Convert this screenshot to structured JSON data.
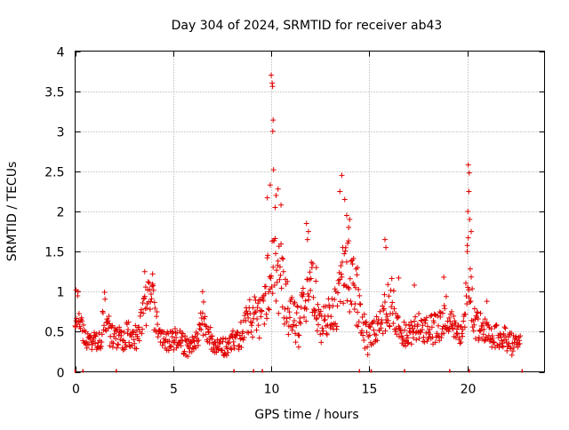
{
  "chart_data": {
    "type": "scatter",
    "title": "Day 304 of 2024, SRMTID for receiver ab43",
    "xlabel": "GPS time / hours",
    "ylabel": "SRMTID / TECUs",
    "xlim": [
      0,
      23.94
    ],
    "ylim": [
      0,
      4
    ],
    "xticks": [
      0,
      5,
      10,
      15,
      20
    ],
    "xtick_labels": [
      "0",
      "5",
      "10",
      "15",
      "20"
    ],
    "yticks": [
      0,
      0.5,
      1,
      1.5,
      2,
      2.5,
      3,
      3.5,
      4
    ],
    "ytick_labels": [
      "0",
      "0.5",
      "1",
      "1.5",
      "2",
      "2.5",
      "3",
      "3.5",
      "4"
    ],
    "grid": true,
    "marker": "+",
    "color": "#e00000",
    "profile": [
      [
        0.0,
        0.72,
        0.3
      ],
      [
        0.15,
        0.85,
        0.2
      ],
      [
        0.4,
        0.45,
        0.15
      ],
      [
        0.8,
        0.38,
        0.12
      ],
      [
        1.3,
        0.42,
        0.15
      ],
      [
        1.5,
        0.75,
        0.25
      ],
      [
        1.8,
        0.45,
        0.15
      ],
      [
        2.3,
        0.4,
        0.15
      ],
      [
        2.7,
        0.48,
        0.18
      ],
      [
        3.2,
        0.42,
        0.15
      ],
      [
        3.6,
        0.85,
        0.3
      ],
      [
        3.9,
        0.9,
        0.3
      ],
      [
        4.3,
        0.45,
        0.15
      ],
      [
        4.8,
        0.38,
        0.12
      ],
      [
        5.3,
        0.42,
        0.15
      ],
      [
        5.7,
        0.3,
        0.12
      ],
      [
        6.1,
        0.35,
        0.12
      ],
      [
        6.5,
        0.7,
        0.25
      ],
      [
        7.0,
        0.35,
        0.12
      ],
      [
        7.6,
        0.3,
        0.12
      ],
      [
        8.2,
        0.4,
        0.15
      ],
      [
        8.6,
        0.5,
        0.18
      ],
      [
        8.9,
        0.75,
        0.35
      ],
      [
        9.3,
        0.6,
        0.25
      ],
      [
        9.7,
        0.9,
        0.4
      ],
      [
        10.0,
        1.4,
        0.6
      ],
      [
        10.3,
        1.3,
        0.6
      ],
      [
        10.6,
        1.05,
        0.45
      ],
      [
        11.0,
        0.65,
        0.3
      ],
      [
        11.4,
        0.55,
        0.25
      ],
      [
        11.8,
        0.9,
        0.35
      ],
      [
        12.1,
        1.1,
        0.4
      ],
      [
        12.5,
        0.55,
        0.2
      ],
      [
        12.9,
        0.65,
        0.25
      ],
      [
        13.3,
        0.8,
        0.3
      ],
      [
        13.7,
        1.3,
        0.45
      ],
      [
        14.1,
        1.15,
        0.45
      ],
      [
        14.5,
        0.75,
        0.3
      ],
      [
        14.9,
        0.4,
        0.2
      ],
      [
        15.3,
        0.55,
        0.2
      ],
      [
        15.7,
        0.65,
        0.25
      ],
      [
        16.1,
        0.9,
        0.35
      ],
      [
        16.5,
        0.5,
        0.15
      ],
      [
        17.0,
        0.45,
        0.15
      ],
      [
        17.5,
        0.55,
        0.18
      ],
      [
        18.0,
        0.5,
        0.18
      ],
      [
        18.5,
        0.55,
        0.2
      ],
      [
        18.9,
        0.75,
        0.25
      ],
      [
        19.4,
        0.5,
        0.15
      ],
      [
        19.8,
        0.5,
        0.15
      ],
      [
        20.05,
        1.5,
        0.6
      ],
      [
        20.3,
        0.6,
        0.2
      ],
      [
        20.8,
        0.55,
        0.18
      ],
      [
        21.3,
        0.45,
        0.15
      ],
      [
        21.8,
        0.45,
        0.15
      ],
      [
        22.2,
        0.35,
        0.15
      ],
      [
        22.7,
        0.35,
        0.12
      ]
    ],
    "peaks": [
      [
        10.0,
        3.7
      ],
      [
        10.05,
        3.6
      ],
      [
        10.07,
        3.56
      ],
      [
        10.1,
        3.14
      ],
      [
        10.08,
        3.0
      ],
      [
        10.12,
        2.52
      ],
      [
        9.95,
        2.33
      ],
      [
        10.35,
        2.28
      ],
      [
        10.25,
        2.2
      ],
      [
        9.8,
        2.17
      ],
      [
        10.5,
        2.08
      ],
      [
        10.2,
        2.05
      ],
      [
        11.8,
        1.85
      ],
      [
        11.9,
        1.75
      ],
      [
        11.85,
        1.65
      ],
      [
        13.6,
        2.45
      ],
      [
        13.5,
        2.25
      ],
      [
        13.75,
        2.15
      ],
      [
        13.85,
        1.95
      ],
      [
        14.0,
        1.9
      ],
      [
        13.95,
        1.8
      ],
      [
        15.8,
        1.65
      ],
      [
        15.85,
        1.55
      ],
      [
        20.05,
        2.58
      ],
      [
        20.1,
        2.48
      ],
      [
        20.08,
        2.25
      ],
      [
        20.03,
        2.0
      ],
      [
        20.12,
        1.9
      ],
      [
        20.2,
        1.75
      ],
      [
        20.0,
        1.5
      ],
      [
        3.55,
        1.25
      ],
      [
        3.95,
        1.22
      ],
      [
        0.05,
        1.02
      ],
      [
        6.5,
        1.0
      ],
      [
        16.5,
        1.17
      ],
      [
        17.3,
        1.08
      ],
      [
        18.8,
        1.18
      ],
      [
        21.0,
        0.88
      ],
      [
        12.3,
        1.3
      ],
      [
        14.4,
        1.3
      ]
    ],
    "rug_markers": [
      0.0,
      0.4,
      2.1,
      8.1,
      9.1,
      9.55,
      14.5,
      15.1,
      16.8,
      19.1,
      20.1,
      22.8
    ]
  }
}
